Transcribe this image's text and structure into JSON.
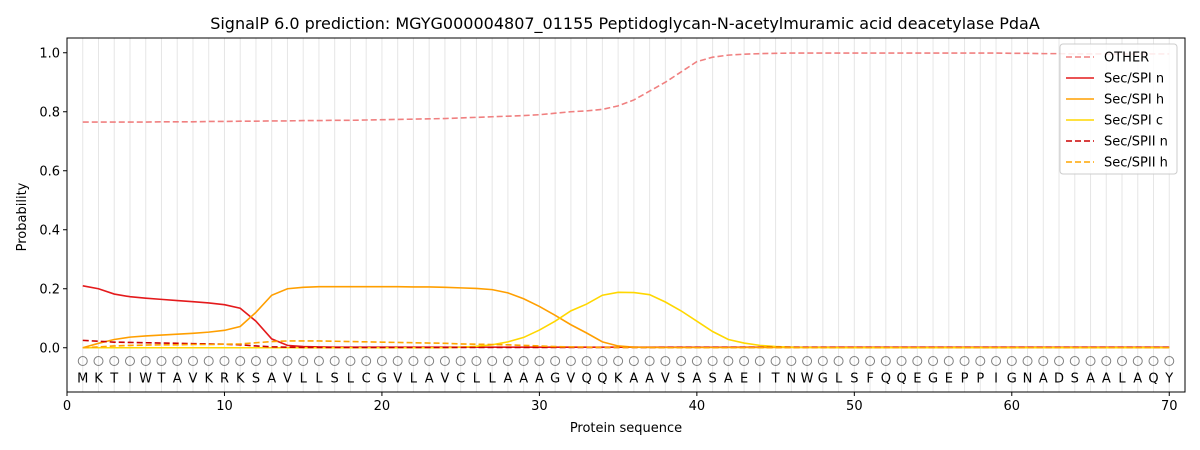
{
  "chart_data": {
    "type": "line",
    "title": "SignalP 6.0 prediction: MGYG000004807_01155 Peptidoglycan-N-acetylmuramic acid deacetylase PdaA",
    "xlabel": "Protein sequence",
    "ylabel": "Probability",
    "xlim": [
      0,
      71
    ],
    "ylim": [
      -0.15,
      1.05
    ],
    "xticks": [
      0,
      10,
      20,
      30,
      40,
      50,
      60,
      70
    ],
    "yticks": [
      0.0,
      0.2,
      0.4,
      0.6,
      0.8,
      1.0
    ],
    "ytick_labels": [
      "0.0",
      "0.2",
      "0.4",
      "0.6",
      "0.8",
      "1.0"
    ],
    "grid": "vertical lines at each residue",
    "legend_position": "top-right",
    "sequence": [
      "M",
      "K",
      "T",
      "I",
      "W",
      "T",
      "A",
      "V",
      "K",
      "R",
      "K",
      "S",
      "A",
      "V",
      "L",
      "L",
      "S",
      "L",
      "C",
      "G",
      "V",
      "L",
      "A",
      "V",
      "C",
      "L",
      "L",
      "A",
      "A",
      "A",
      "G",
      "V",
      "Q",
      "Q",
      "K",
      "A",
      "A",
      "V",
      "S",
      "A",
      "S",
      "A",
      "E",
      "I",
      "T",
      "N",
      "W",
      "G",
      "L",
      "S",
      "F",
      "Q",
      "Q",
      "E",
      "G",
      "E",
      "P",
      "P",
      "I",
      "G",
      "N",
      "A",
      "D",
      "S",
      "A",
      "A",
      "L",
      "A",
      "Q",
      "Y"
    ],
    "series": [
      {
        "name": "OTHER",
        "color": "#f08080",
        "dash": true,
        "values": [
          0.765,
          0.765,
          0.765,
          0.765,
          0.765,
          0.766,
          0.766,
          0.766,
          0.767,
          0.767,
          0.768,
          0.768,
          0.769,
          0.769,
          0.77,
          0.77,
          0.771,
          0.771,
          0.772,
          0.773,
          0.774,
          0.775,
          0.776,
          0.777,
          0.779,
          0.781,
          0.783,
          0.785,
          0.787,
          0.79,
          0.795,
          0.8,
          0.803,
          0.808,
          0.82,
          0.84,
          0.87,
          0.9,
          0.935,
          0.97,
          0.985,
          0.992,
          0.995,
          0.997,
          0.998,
          0.999,
          0.999,
          0.999,
          0.999,
          0.999,
          0.999,
          0.999,
          0.999,
          0.999,
          0.999,
          0.999,
          0.999,
          0.999,
          0.999,
          0.998,
          0.998,
          0.997,
          0.997,
          0.996,
          0.996,
          0.996,
          0.996,
          0.996,
          0.996,
          0.996
        ]
      },
      {
        "name": "Sec/SPI n",
        "color": "#e41a1c",
        "dash": false,
        "values": [
          0.21,
          0.2,
          0.182,
          0.173,
          0.168,
          0.164,
          0.16,
          0.156,
          0.152,
          0.146,
          0.134,
          0.09,
          0.03,
          0.008,
          0.004,
          0.003,
          0.002,
          0.002,
          0.002,
          0.002,
          0.002,
          0.002,
          0.002,
          0.002,
          0.002,
          0.002,
          0.002,
          0.002,
          0.002,
          0.002,
          0.002,
          0.002,
          0.002,
          0.002,
          0.002,
          0.002,
          0.002,
          0.002,
          0.002,
          0.002,
          0.002,
          0.002,
          0.002,
          0.002,
          0.002,
          0.002,
          0.002,
          0.002,
          0.002,
          0.002,
          0.002,
          0.002,
          0.002,
          0.002,
          0.002,
          0.002,
          0.002,
          0.002,
          0.002,
          0.002,
          0.002,
          0.002,
          0.002,
          0.002,
          0.002,
          0.002,
          0.002,
          0.002,
          0.002,
          0.002
        ]
      },
      {
        "name": "Sec/SPI h",
        "color": "#ff9f00",
        "dash": false,
        "values": [
          0.0,
          0.015,
          0.028,
          0.036,
          0.04,
          0.043,
          0.046,
          0.049,
          0.053,
          0.059,
          0.072,
          0.12,
          0.178,
          0.2,
          0.205,
          0.207,
          0.207,
          0.207,
          0.207,
          0.207,
          0.207,
          0.206,
          0.206,
          0.205,
          0.203,
          0.201,
          0.197,
          0.186,
          0.166,
          0.14,
          0.11,
          0.078,
          0.05,
          0.02,
          0.006,
          0.002,
          0.001,
          0.001,
          0.001,
          0.001,
          0.001,
          0.001,
          0.001,
          0.001,
          0.001,
          0.001,
          0.001,
          0.001,
          0.001,
          0.001,
          0.001,
          0.001,
          0.001,
          0.001,
          0.001,
          0.001,
          0.001,
          0.001,
          0.001,
          0.001,
          0.001,
          0.001,
          0.001,
          0.001,
          0.001,
          0.001,
          0.001,
          0.001,
          0.001,
          0.001
        ]
      },
      {
        "name": "Sec/SPI c",
        "color": "#ffd700",
        "dash": false,
        "values": [
          0.0,
          0.0,
          0.0,
          0.0,
          0.0,
          0.0,
          0.0,
          0.0,
          0.0,
          0.0,
          0.0,
          0.0,
          0.0,
          0.0,
          0.0,
          0.0,
          0.0,
          0.0,
          0.0,
          0.0,
          0.0,
          0.0,
          0.0,
          0.0,
          0.002,
          0.005,
          0.01,
          0.02,
          0.035,
          0.06,
          0.09,
          0.125,
          0.148,
          0.178,
          0.188,
          0.187,
          0.18,
          0.155,
          0.125,
          0.09,
          0.055,
          0.028,
          0.016,
          0.008,
          0.004,
          0.002,
          0.001,
          0.001,
          0.0,
          0.0,
          0.0,
          0.0,
          0.0,
          0.0,
          0.0,
          0.0,
          0.0,
          0.0,
          0.0,
          0.0,
          0.0,
          0.0,
          0.0,
          0.0,
          0.0,
          0.0,
          0.0,
          0.0,
          0.0,
          0.0
        ]
      },
      {
        "name": "Sec/SPII n",
        "color": "#cc0000",
        "dash": true,
        "values": [
          0.025,
          0.022,
          0.019,
          0.018,
          0.017,
          0.016,
          0.015,
          0.014,
          0.013,
          0.012,
          0.01,
          0.006,
          0.003,
          0.002,
          0.001,
          0.001,
          0.001,
          0.001,
          0.001,
          0.001,
          0.001,
          0.001,
          0.001,
          0.001,
          0.001,
          0.001,
          0.001,
          0.001,
          0.001,
          0.001,
          0.001,
          0.001,
          0.001,
          0.001,
          0.001,
          0.001,
          0.001,
          0.001,
          0.001,
          0.001,
          0.001,
          0.001,
          0.001,
          0.001,
          0.001,
          0.001,
          0.001,
          0.001,
          0.001,
          0.001,
          0.001,
          0.001,
          0.001,
          0.001,
          0.001,
          0.001,
          0.001,
          0.001,
          0.001,
          0.001,
          0.001,
          0.001,
          0.001,
          0.001,
          0.001,
          0.001,
          0.001,
          0.001,
          0.001,
          0.001
        ]
      },
      {
        "name": "Sec/SPII h",
        "color": "#ffa500",
        "dash": true,
        "values": [
          0.0,
          0.003,
          0.006,
          0.008,
          0.009,
          0.01,
          0.01,
          0.011,
          0.011,
          0.012,
          0.013,
          0.017,
          0.021,
          0.023,
          0.023,
          0.023,
          0.022,
          0.021,
          0.02,
          0.019,
          0.018,
          0.017,
          0.016,
          0.015,
          0.013,
          0.012,
          0.011,
          0.01,
          0.008,
          0.006,
          0.004,
          0.003,
          0.002,
          0.001,
          0.001,
          0.001,
          0.001,
          0.0,
          0.0,
          0.0,
          0.0,
          0.0,
          0.0,
          0.0,
          0.0,
          0.0,
          0.0,
          0.0,
          0.0,
          0.0,
          0.0,
          0.0,
          0.0,
          0.0,
          0.0,
          0.0,
          0.0,
          0.0,
          0.0,
          0.0,
          0.0,
          0.0,
          0.0,
          0.0,
          0.0,
          0.0,
          0.0,
          0.0,
          0.0,
          0.0
        ]
      }
    ]
  }
}
